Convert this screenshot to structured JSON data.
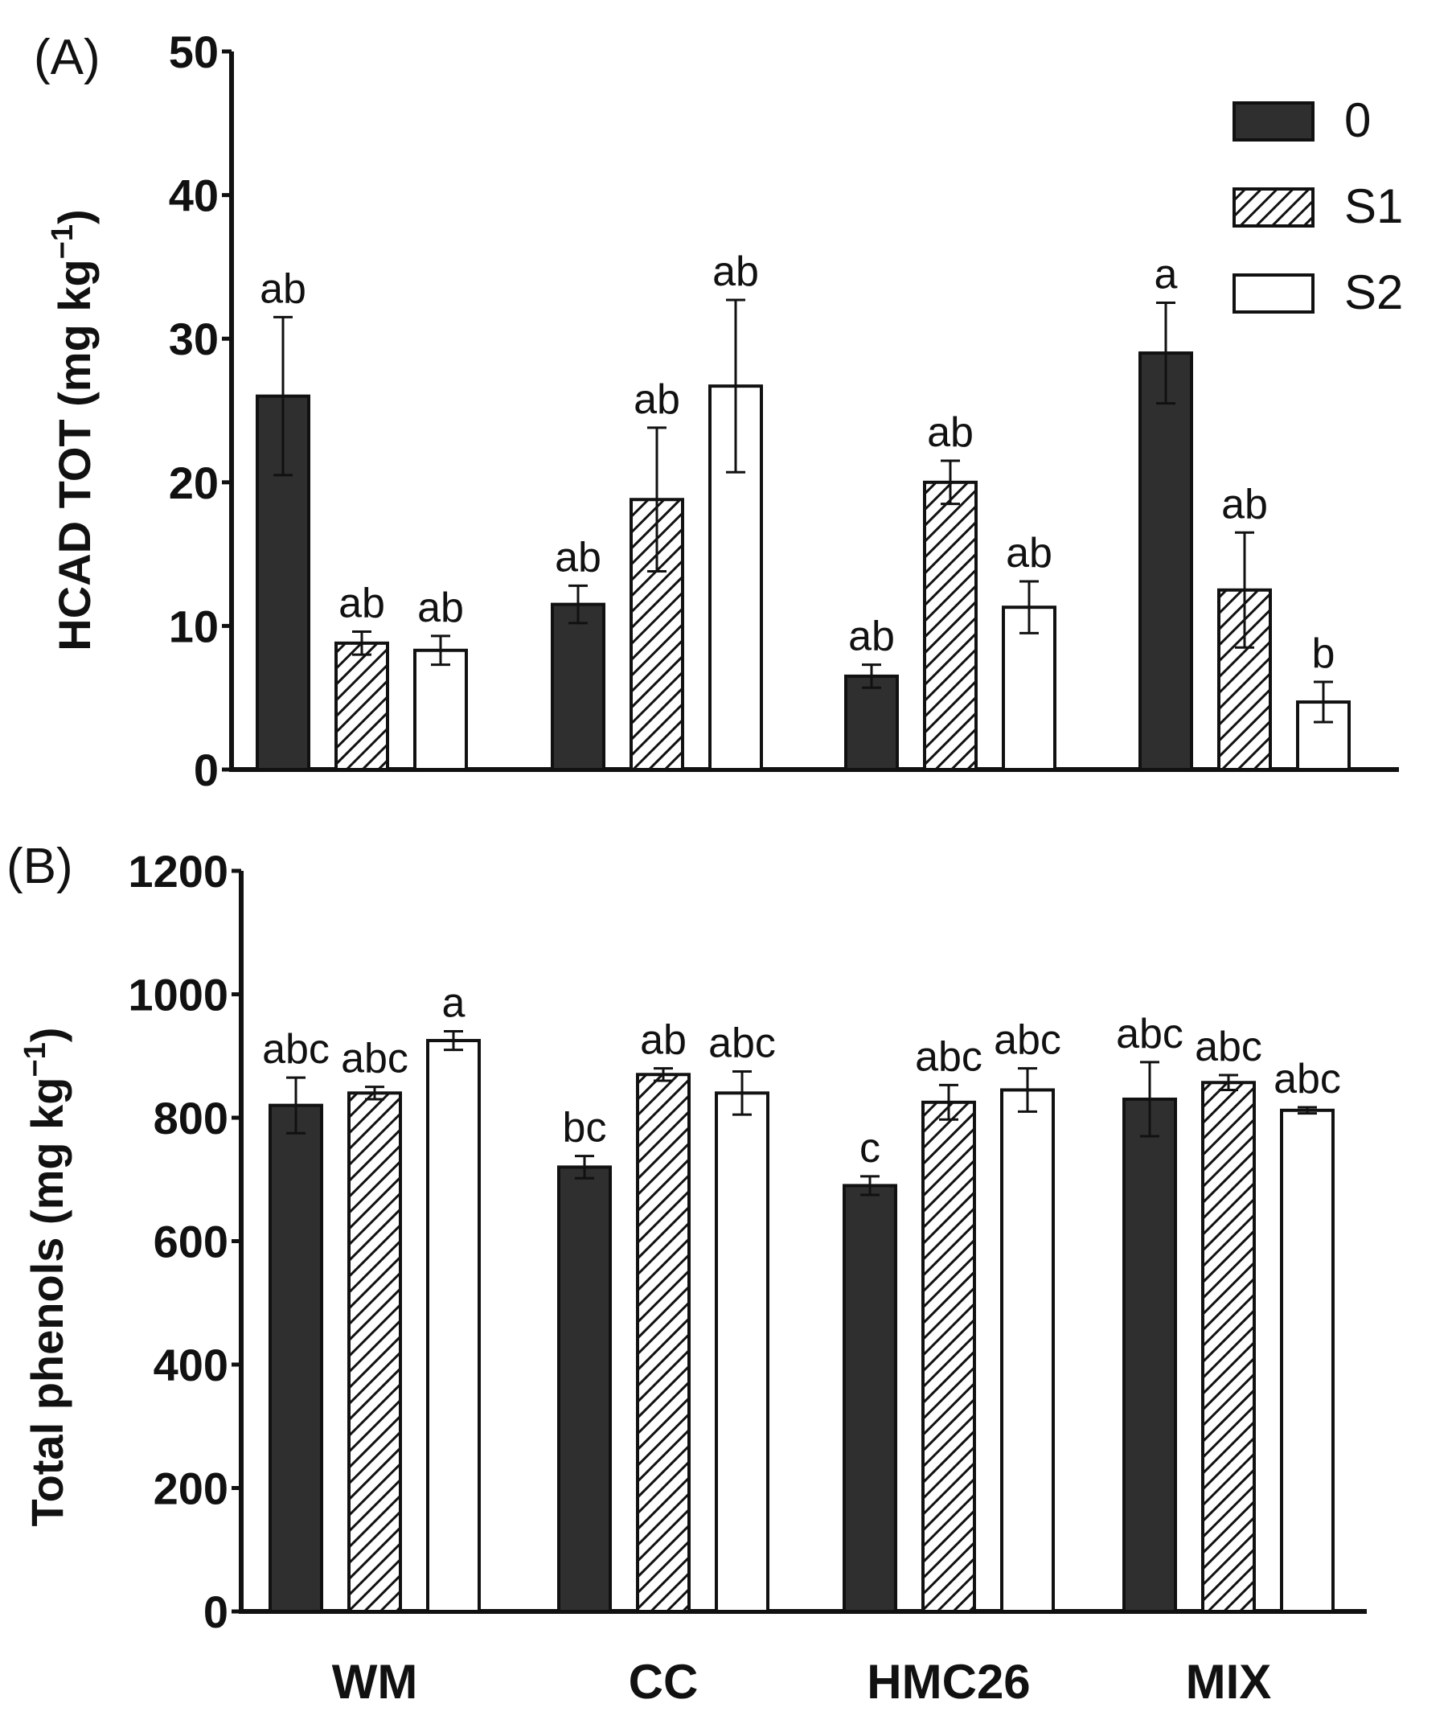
{
  "chart_data": [
    {
      "type": "bar",
      "panel_label": "(A)",
      "ylabel_main": "HCAD TOT (mg kg",
      "ylabel_sup": "−1",
      "ylabel_close": ")",
      "ylim": [
        0,
        50
      ],
      "yticks": [
        0,
        10,
        20,
        30,
        40,
        50
      ],
      "categories": [
        "WM",
        "CC",
        "HMC26",
        "MIX"
      ],
      "series": [
        {
          "name": "0",
          "values": [
            26.0,
            11.5,
            6.5,
            29.0
          ],
          "errors": [
            5.5,
            1.3,
            0.8,
            3.5
          ],
          "letters": [
            "ab",
            "ab",
            "ab",
            "a"
          ]
        },
        {
          "name": "S1",
          "values": [
            8.8,
            18.8,
            20.0,
            12.5
          ],
          "errors": [
            0.8,
            5.0,
            1.5,
            4.0
          ],
          "letters": [
            "ab",
            "ab",
            "ab",
            "ab"
          ]
        },
        {
          "name": "S2",
          "values": [
            8.3,
            26.7,
            11.3,
            4.7
          ],
          "errors": [
            1.0,
            6.0,
            1.8,
            1.4
          ],
          "letters": [
            "ab",
            "ab",
            "ab",
            "b"
          ]
        }
      ],
      "legend": [
        "0",
        "S1",
        "S2"
      ],
      "legend_position": "top-right"
    },
    {
      "type": "bar",
      "panel_label": "(B)",
      "ylabel_main": "Total phenols (mg kg",
      "ylabel_sup": "−1",
      "ylabel_close": ")",
      "xlabel": "",
      "ylim": [
        0,
        1200
      ],
      "yticks": [
        0,
        200,
        400,
        600,
        800,
        1000,
        1200
      ],
      "categories": [
        "WM",
        "CC",
        "HMC26",
        "MIX"
      ],
      "series": [
        {
          "name": "0",
          "values": [
            820,
            720,
            690,
            830
          ],
          "errors": [
            45,
            18,
            15,
            60
          ],
          "letters": [
            "abc",
            "bc",
            "c",
            "abc"
          ]
        },
        {
          "name": "S1",
          "values": [
            840,
            870,
            825,
            857
          ],
          "errors": [
            10,
            10,
            28,
            12
          ],
          "letters": [
            "abc",
            "ab",
            "abc",
            "abc"
          ]
        },
        {
          "name": "S2",
          "values": [
            925,
            840,
            845,
            812
          ],
          "errors": [
            15,
            35,
            35,
            5
          ],
          "letters": [
            "a",
            "abc",
            "abc",
            "abc"
          ]
        }
      ]
    }
  ],
  "colors": {
    "series_0": "#2f2f2f",
    "hatch": "#111111",
    "open": "#ffffff"
  }
}
